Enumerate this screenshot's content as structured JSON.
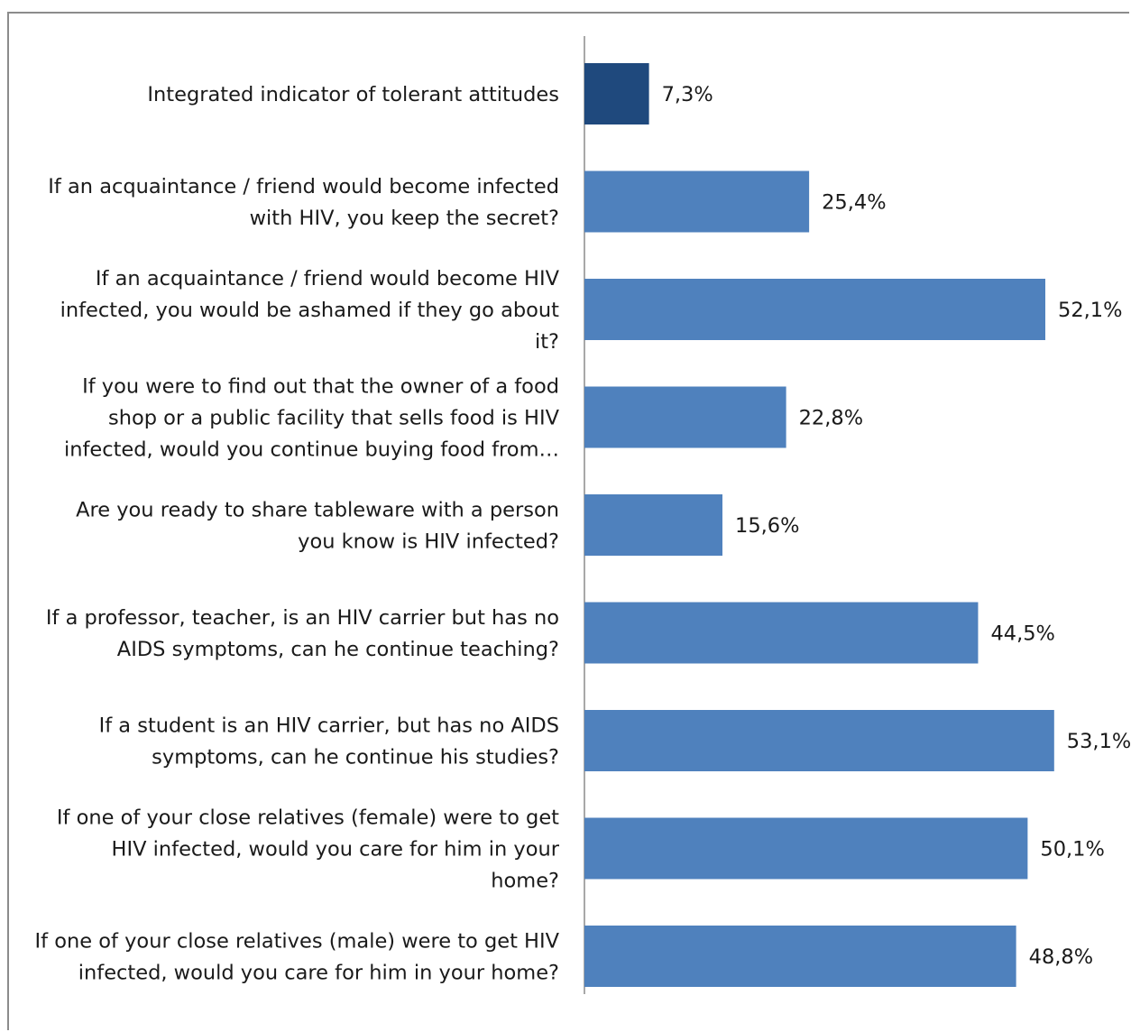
{
  "chart_data": {
    "type": "bar",
    "orientation": "horizontal",
    "categories": [
      [
        "Integrated indicator of tolerant attitudes"
      ],
      [
        "If an acquaintance / friend would become infected",
        "with HIV, you keep the secret?"
      ],
      [
        "If an acquaintance / friend would become HIV",
        "infected, you would be ashamed if they go about",
        "it?"
      ],
      [
        "If you were to find out that the owner of a food",
        "shop or a public facility that sells food is HIV",
        "infected, would you continue buying food from…"
      ],
      [
        "Are you ready to share tableware with a person",
        "you know is HIV infected?"
      ],
      [
        "If a professor, teacher, is an HIV carrier but has no",
        "AIDS symptoms, can he continue teaching?"
      ],
      [
        "If a student is an HIV carrier, but has no AIDS",
        "symptoms, can he continue his studies?"
      ],
      [
        "If one of your close relatives (female) were to get",
        "HIV infected, would you  care for him in your",
        "home?"
      ],
      [
        "If one of your close relatives (male) were to get HIV",
        "infected, would you  care for him in your home?"
      ]
    ],
    "values": [
      7.3,
      25.4,
      52.1,
      22.8,
      15.6,
      44.5,
      53.1,
      50.1,
      48.8
    ],
    "value_labels": [
      "7,3%",
      "25,4%",
      "52,1%",
      "22,8%",
      "15,6%",
      "44,5%",
      "53,1%",
      "50,1%",
      "48,8%"
    ],
    "highlight_index": 0,
    "xlim": [
      0,
      60
    ],
    "grid": false,
    "legend": "none",
    "colors": {
      "highlight": "#1f497d",
      "bar": "#4f81bd",
      "axis": "#8c8c8c"
    }
  }
}
